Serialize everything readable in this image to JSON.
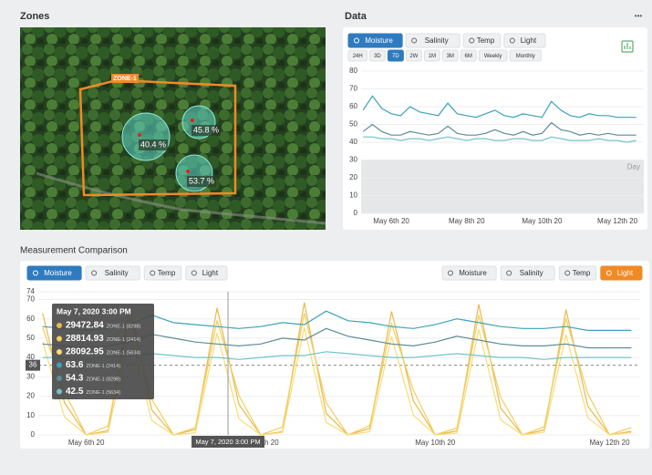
{
  "zones": {
    "title": "Zones",
    "zone_label": "ZONE-1",
    "sensors": {
      "values": [
        40.4,
        45.8,
        53.7
      ],
      "value_labels": [
        "40.4 %",
        "45.8 %",
        "53.7 %"
      ]
    }
  },
  "data_panel": {
    "title": "Data",
    "menu": "•••",
    "tabs": [
      "Moisture",
      "Salinity",
      "Temp",
      "Light"
    ],
    "active_tab": 0,
    "ranges": [
      "24H",
      "3D",
      "7D",
      "2W",
      "1M",
      "3M",
      "6M",
      "Weekly",
      "Monthly"
    ],
    "active_range": 2
  },
  "comparison": {
    "title": "Measurement Comparison",
    "tabs_left": [
      "Moisture",
      "Salinity",
      "Temp",
      "Light"
    ],
    "active_left": 0,
    "tabs_right": [
      "Moisture",
      "Salinity",
      "Temp",
      "Light"
    ],
    "active_right": 3
  },
  "chart_data": [
    {
      "type": "line",
      "grid": true,
      "x": [
        5.25,
        5.5,
        5.75,
        6,
        6.25,
        6.5,
        6.75,
        7,
        7.25,
        7.5,
        7.75,
        8,
        8.25,
        8.5,
        8.75,
        9,
        9.25,
        9.5,
        9.75,
        10,
        10.25,
        10.5,
        10.75,
        11,
        11.25,
        11.5,
        11.75,
        12,
        12.25,
        12.5
      ],
      "xlim": [
        5.2,
        12.7
      ],
      "xticks": [
        {
          "value": 6,
          "label": "May 6th 20"
        },
        {
          "value": 8,
          "label": "May 8th 20"
        },
        {
          "value": 10,
          "label": "May 10th 20"
        },
        {
          "value": 12,
          "label": "May 12th 20"
        }
      ],
      "ylim": [
        0,
        80
      ],
      "yticks": [
        0,
        10,
        20,
        30,
        40,
        50,
        60,
        70,
        80
      ],
      "band": [
        0,
        30
      ],
      "band_label": "Day",
      "series": [
        {
          "color": "#3ba3b8",
          "values": [
            58,
            66,
            59,
            56,
            55,
            60,
            57,
            56,
            55,
            62,
            56,
            55,
            54,
            56,
            58,
            55,
            54,
            56,
            55,
            54,
            63,
            58,
            55,
            54,
            56,
            55,
            55,
            54,
            54,
            54
          ]
        },
        {
          "color": "#5d8c96",
          "values": [
            46,
            50,
            46,
            44,
            44,
            46,
            45,
            44,
            45,
            49,
            45,
            44,
            44,
            45,
            47,
            45,
            44,
            46,
            44,
            45,
            51,
            47,
            46,
            44,
            45,
            44,
            45,
            44,
            44,
            44
          ]
        },
        {
          "color": "#72c3cb",
          "values": [
            43,
            43,
            42,
            42,
            41,
            42,
            42,
            41,
            42,
            43,
            42,
            41,
            42,
            42,
            41,
            41,
            42,
            42,
            41,
            41,
            43,
            42,
            41,
            41,
            41,
            42,
            41,
            41,
            40,
            41
          ]
        }
      ]
    },
    {
      "type": "line",
      "grid": true,
      "x": [
        5.5,
        5.75,
        6,
        6.25,
        6.5,
        6.75,
        7,
        7.25,
        7.5,
        7.75,
        8,
        8.25,
        8.5,
        8.75,
        9,
        9.25,
        9.5,
        9.75,
        10,
        10.25,
        10.5,
        10.75,
        11,
        11.25,
        11.5,
        11.75,
        12,
        12.25
      ],
      "xlim": [
        5.45,
        12.35
      ],
      "xticks": [
        {
          "value": 6,
          "label": "May 6th 20"
        },
        {
          "value": 8,
          "label": "May 8th 20"
        },
        {
          "value": 10,
          "label": "May 10th 20"
        },
        {
          "value": 12,
          "label": "May 12th 20"
        }
      ],
      "ylim": [
        0,
        74
      ],
      "yticks": [
        0,
        10,
        20,
        30,
        40,
        50,
        60,
        70,
        74
      ],
      "y2lim": [
        0,
        40000
      ],
      "reference": 36,
      "crosshair_x": 7.625,
      "crosshair_label": "May 7, 2020 3:00 PM",
      "series": [
        {
          "name": "ZONE-1 (8298)",
          "axis": "y2",
          "color": "#e9b949",
          "tooltip_value": 29472.84,
          "values": [
            34000,
            9000,
            0,
            1200,
            36000,
            7000,
            0,
            1500,
            35500,
            8500,
            0,
            900,
            37000,
            6000,
            0,
            1800,
            34500,
            9500,
            0,
            1100,
            36500,
            7500,
            0,
            1400,
            35000,
            8000,
            0,
            1000
          ]
        },
        {
          "name": "ZONE-1 (2414)",
          "axis": "y2",
          "color": "#f2cd5c",
          "tooltip_value": 28814.93,
          "values": [
            30000,
            12000,
            0,
            2500,
            33000,
            10000,
            0,
            2000,
            32000,
            11000,
            0,
            2200,
            34000,
            9000,
            0,
            2600,
            31000,
            12500,
            0,
            1900,
            33500,
            10500,
            0,
            2300,
            32500,
            11500,
            0,
            2100
          ]
        },
        {
          "name": "ZONE-1 (5634)",
          "axis": "y2",
          "color": "#f7dc78",
          "tooltip_value": 28092.95,
          "values": [
            26000,
            5000,
            0,
            800,
            29000,
            4000,
            0,
            600,
            28500,
            4500,
            0,
            700,
            30000,
            3500,
            0,
            900,
            27500,
            5500,
            0,
            500,
            29500,
            4200,
            0,
            750,
            28000,
            4800,
            0,
            650
          ]
        },
        {
          "name": "ZONE-1 (2414)",
          "color": "#3ba3b8",
          "tooltip_value": 63.6,
          "values": [
            56,
            55,
            54,
            55,
            57,
            62,
            58,
            57,
            56,
            55,
            56,
            58,
            57,
            64,
            59,
            58,
            56,
            55,
            57,
            60,
            58,
            56,
            55,
            55,
            56,
            54,
            54,
            54
          ]
        },
        {
          "name": "ZONE-1 (8298)",
          "color": "#5d8c96",
          "tooltip_value": 54.3,
          "values": [
            47,
            46,
            45,
            46,
            48,
            52,
            50,
            48,
            47,
            46,
            47,
            50,
            49,
            55,
            51,
            49,
            47,
            46,
            48,
            51,
            49,
            47,
            46,
            46,
            47,
            45,
            45,
            45
          ]
        },
        {
          "name": "ZONE-1 (5634)",
          "color": "#72c3cb",
          "tooltip_value": 42.5,
          "values": [
            40,
            40,
            39,
            40,
            41,
            42,
            41,
            40,
            40,
            39,
            40,
            41,
            41,
            43,
            42,
            41,
            40,
            40,
            41,
            42,
            41,
            40,
            40,
            39,
            40,
            40,
            40,
            40
          ]
        }
      ]
    }
  ]
}
